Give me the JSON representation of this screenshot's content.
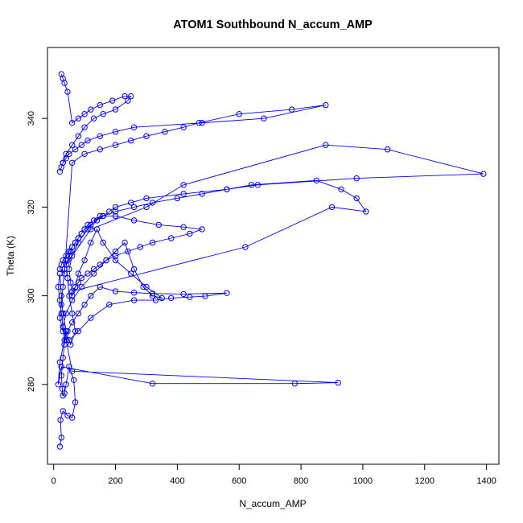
{
  "chart_data": {
    "type": "line",
    "title": "ATOM1 Southbound N_accum_AMP",
    "xlabel": "N_accum_AMP",
    "ylabel": "Theta (K)",
    "xlim": [
      -20,
      1440
    ],
    "ylim": [
      262,
      356
    ],
    "xticks": [
      0,
      200,
      400,
      600,
      800,
      1000,
      1200,
      1400
    ],
    "yticks": [
      280,
      300,
      320,
      340
    ],
    "grid": false,
    "legend": "none",
    "series_color": "#0000ff",
    "marker": "open-circle",
    "series": [
      {
        "values_x": [
          20,
          25,
          22,
          30,
          45,
          60,
          70,
          65,
          50,
          40,
          35,
          30,
          28,
          25,
          30,
          35,
          40,
          20,
          15,
          25,
          320,
          780,
          920,
          60,
          40,
          30,
          25,
          20,
          15,
          20,
          25,
          30,
          40,
          55,
          70,
          60,
          50,
          45,
          40,
          35,
          30,
          25,
          20,
          30,
          50,
          80,
          120,
          180,
          260,
          330,
          380,
          440,
          490,
          560,
          420,
          320,
          260,
          200,
          150,
          120,
          100,
          80,
          60,
          45,
          35,
          30,
          40,
          60,
          90,
          130,
          170,
          200,
          230,
          260,
          290,
          320,
          350,
          300,
          250,
          200,
          160,
          140,
          120,
          100,
          80,
          70,
          60,
          55,
          50,
          60,
          80,
          110,
          150,
          200,
          260,
          340,
          420,
          480,
          440,
          380,
          320,
          280,
          240,
          200,
          170,
          150,
          130,
          110,
          90,
          80,
          70,
          60,
          620,
          900,
          1010,
          980,
          930,
          850,
          640,
          560,
          420,
          300,
          250,
          200,
          180,
          160,
          140,
          120,
          100,
          90,
          80,
          70,
          60,
          55,
          50,
          45,
          40,
          120,
          300,
          420,
          880,
          1080,
          1390,
          980,
          660,
          560,
          480,
          400,
          320,
          260,
          200,
          160,
          130,
          110,
          100,
          90,
          80,
          70,
          60,
          50,
          40,
          30,
          25,
          20,
          35,
          60,
          100,
          150,
          200,
          250,
          300,
          360,
          420,
          470,
          600,
          770,
          880,
          680,
          480,
          260,
          200,
          150,
          110,
          90,
          70,
          50,
          40,
          30,
          25,
          20,
          30,
          40,
          60,
          80,
          100,
          130,
          160,
          200,
          240,
          250,
          230,
          190,
          150,
          120,
          100,
          80,
          60,
          45,
          35,
          30,
          25
        ],
        "values_y": [
          266,
          268,
          272,
          274,
          273,
          272.5,
          276,
          281,
          284,
          280,
          278,
          277.5,
          279,
          282,
          286,
          289,
          292,
          285,
          280,
          284,
          280.2,
          280.2,
          280.4,
          283,
          290,
          293,
          296,
          299,
          302,
          305,
          300,
          296,
          292,
          289,
          292,
          296,
          300,
          304,
          308,
          306,
          302,
          298,
          295,
          292,
          290,
          292,
          295,
          298,
          299,
          299,
          299.5,
          299.7,
          299.9,
          300.6,
          300.4,
          300.5,
          300.7,
          301,
          302,
          300,
          298,
          296,
          294,
          292,
          290,
          293,
          296,
          299,
          302,
          305,
          308,
          310,
          312,
          306,
          302,
          300,
          299.5,
          302,
          305,
          308,
          312,
          315,
          312,
          308,
          305,
          302,
          300,
          303,
          306,
          309,
          312,
          315,
          318,
          318,
          317,
          316,
          315.5,
          315,
          314,
          313,
          312,
          311,
          310,
          309,
          308,
          307,
          306,
          305,
          304,
          303,
          302,
          301,
          311,
          320,
          319,
          322,
          324,
          326,
          325,
          324,
          323,
          322,
          321,
          320,
          319,
          318,
          317,
          316,
          315,
          314,
          313,
          312,
          311,
          310,
          309,
          308,
          307,
          315,
          320,
          325,
          334,
          333,
          327.5,
          326.5,
          325,
          324,
          323,
          322,
          321,
          320,
          319,
          318,
          317,
          316,
          315,
          314,
          313,
          312,
          311,
          310,
          309,
          308,
          307,
          306,
          305,
          330,
          332,
          333,
          334,
          335,
          336,
          337,
          338,
          339,
          341,
          342,
          343,
          340,
          339,
          338,
          337,
          336,
          335,
          334,
          333,
          332,
          331,
          330,
          329,
          328,
          330,
          332,
          334,
          336,
          338,
          340,
          341,
          342,
          344,
          345,
          345,
          344,
          343,
          342,
          341,
          340,
          339,
          346,
          348,
          349,
          350
        ]
      }
    ]
  }
}
